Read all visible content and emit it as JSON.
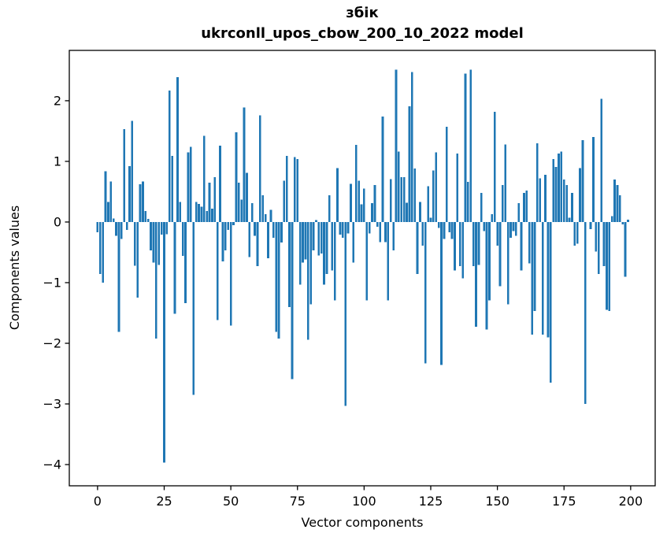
{
  "chart_data": {
    "type": "bar",
    "title": "збік",
    "subtitle": "ukrconll_upos_cbow_200_10_2022 model",
    "xlabel": "Vector components",
    "ylabel": "Components values",
    "x_ticks": [
      0,
      25,
      50,
      75,
      100,
      125,
      150,
      175,
      200
    ],
    "y_ticks": [
      2,
      1,
      0,
      -1,
      -2,
      -3,
      -4
    ],
    "xlim": [
      -10.6,
      209.2
    ],
    "ylim": [
      -4.35,
      2.83
    ],
    "grid": false,
    "legend_position": "none",
    "bar_color": "#1f77b4",
    "background_color": "#ffffff",
    "x_start": 0,
    "n_components": 200,
    "values": [
      -0.17,
      -0.86,
      -1.0,
      0.84,
      0.33,
      0.67,
      0.06,
      -0.23,
      -1.81,
      -0.28,
      1.53,
      -0.13,
      0.92,
      1.67,
      -0.72,
      -1.25,
      0.62,
      0.67,
      0.18,
      0.05,
      -0.47,
      -0.67,
      -1.92,
      -0.71,
      -0.21,
      -3.97,
      -0.2,
      2.17,
      1.09,
      -1.51,
      2.39,
      0.33,
      -0.56,
      -1.34,
      1.15,
      1.24,
      -2.85,
      0.33,
      0.3,
      0.25,
      1.42,
      0.18,
      0.65,
      0.22,
      0.74,
      -1.62,
      1.26,
      -0.65,
      -0.47,
      -0.13,
      -1.71,
      -0.05,
      1.48,
      0.65,
      0.37,
      1.89,
      0.81,
      -0.58,
      0.31,
      -0.23,
      -0.73,
      1.76,
      0.44,
      0.13,
      -0.6,
      0.2,
      -0.26,
      -1.81,
      -1.92,
      -0.34,
      0.68,
      1.09,
      -1.4,
      -2.59,
      1.07,
      1.04,
      -1.03,
      -0.67,
      -0.62,
      -1.94,
      -1.36,
      -0.47,
      0.03,
      -0.55,
      -0.52,
      -1.03,
      -0.86,
      0.44,
      -0.8,
      -1.29,
      0.89,
      -0.21,
      -0.26,
      -3.03,
      -0.19,
      0.63,
      -0.67,
      1.27,
      0.68,
      0.29,
      0.55,
      -1.29,
      -0.19,
      0.31,
      0.61,
      -0.08,
      -0.33,
      1.74,
      -0.33,
      -1.29,
      0.71,
      -0.47,
      2.51,
      1.16,
      0.74,
      0.74,
      0.32,
      1.91,
      2.47,
      0.88,
      -0.86,
      0.33,
      -0.39,
      -2.33,
      0.59,
      0.07,
      0.85,
      1.15,
      -0.1,
      -2.36,
      -0.28,
      1.57,
      -0.17,
      -0.28,
      -0.8,
      1.13,
      -0.73,
      -0.93,
      2.45,
      0.66,
      2.51,
      -0.73,
      -1.73,
      -0.71,
      0.48,
      -0.15,
      -1.77,
      -1.29,
      0.13,
      1.82,
      -0.39,
      -1.06,
      0.61,
      1.28,
      -1.36,
      -0.26,
      -0.15,
      -0.23,
      0.31,
      -0.8,
      0.48,
      0.52,
      -0.68,
      -1.86,
      -1.47,
      1.3,
      0.72,
      -1.86,
      0.78,
      -1.9,
      -2.65,
      1.04,
      0.91,
      1.13,
      1.16,
      0.7,
      0.61,
      0.07,
      0.48,
      -0.39,
      -0.36,
      0.89,
      1.35,
      -3.0,
      0.0,
      -0.12,
      1.4,
      -0.49,
      -0.86,
      2.03,
      -0.73,
      -1.45,
      -1.47,
      0.1,
      0.7,
      0.61,
      0.44,
      -0.04,
      -0.9,
      0.04
    ]
  }
}
